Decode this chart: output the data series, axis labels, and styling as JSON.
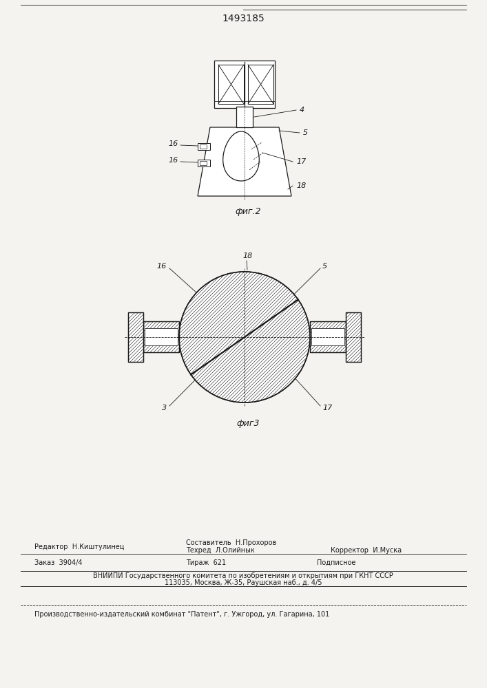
{
  "patent_number": "1493185",
  "fig2_caption": "фиг.2",
  "fig3_caption": "фиг3",
  "bg_color": "#f5f3ef",
  "line_color": "#1a1a1a",
  "label_4": "4",
  "label_5": "5",
  "label_16a": "16",
  "label_16b": "16",
  "label_17": "17",
  "label_18": "18",
  "label_3": "3",
  "footer_editor": "Редактор  Н.Киштулинец",
  "footer_composer": "Составитель  Н.Прохоров",
  "footer_techred": "Техред  Л.Олийнык",
  "footer_corrector": "Корректор  И.Муска",
  "footer_order": "Заказ  3904/4",
  "footer_tirazh": "Тираж  621",
  "footer_podpisnoe": "Подписное",
  "footer_vniipи": "ВНИИПИ Государственного комитета по изобретениям и открытиям при ГКНТ СССР",
  "footer_address": "113035, Москва, Ж-35, Раушская наб., д. 4/5",
  "footer_patent": "Производственно-издательский комбинат \"Патент\", г. Ужгород, ул. Гагарина, 101",
  "font_size_label": 8,
  "font_size_caption": 9,
  "font_size_patent": 10,
  "font_size_footer": 7
}
